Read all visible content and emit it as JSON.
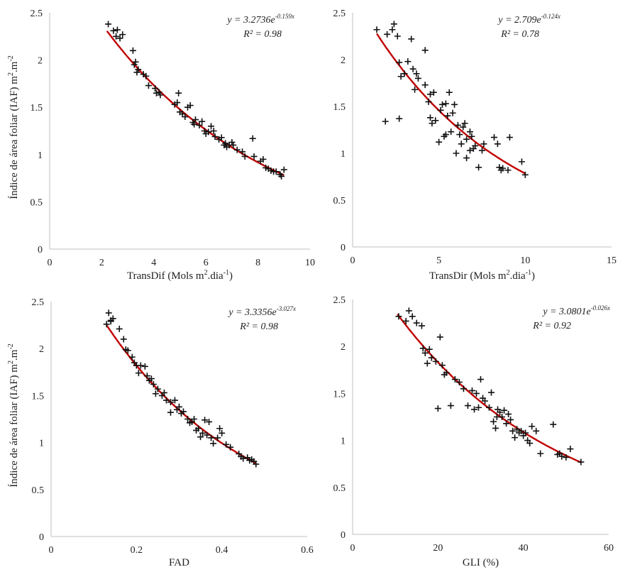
{
  "chart_data": [
    {
      "type": "scatter",
      "id": "transdif",
      "xlabel": "TransDif (Mols m2.dia-1)",
      "xlabel_parts": {
        "main": "TransDif (Mols m",
        "s1": "2",
        "mid": ".dia",
        "s2": "-1",
        "end": ")"
      },
      "ylabel_parts": {
        "main": "Índice de área foliar (IAF) m",
        "s1": "2",
        "mid": ".m",
        "s2": "-2",
        "end": ""
      },
      "xlim": [
        0,
        10
      ],
      "ylim": [
        0,
        2.5
      ],
      "xticks": [
        0,
        2,
        4,
        6,
        8,
        10
      ],
      "yticks": [
        0,
        0.5,
        1,
        1.5,
        2,
        2.5
      ],
      "fit": {
        "a": 3.2736,
        "b": -0.159,
        "x_range": [
          2.2,
          9.0
        ]
      },
      "equation": {
        "base": "y = 3.2736e",
        "exp": "-0.159x"
      },
      "r2": "R² = 0.98",
      "points": [
        [
          2.25,
          2.38
        ],
        [
          2.45,
          2.31
        ],
        [
          2.6,
          2.32
        ],
        [
          2.55,
          2.25
        ],
        [
          2.7,
          2.23
        ],
        [
          2.8,
          2.27
        ],
        [
          3.2,
          2.1
        ],
        [
          3.25,
          1.95
        ],
        [
          3.3,
          1.98
        ],
        [
          3.4,
          1.9
        ],
        [
          3.35,
          1.87
        ],
        [
          3.6,
          1.85
        ],
        [
          3.7,
          1.83
        ],
        [
          3.8,
          1.73
        ],
        [
          4.05,
          1.7
        ],
        [
          4.1,
          1.65
        ],
        [
          4.2,
          1.66
        ],
        [
          4.25,
          1.63
        ],
        [
          4.8,
          1.53
        ],
        [
          4.9,
          1.55
        ],
        [
          4.95,
          1.65
        ],
        [
          5.0,
          1.45
        ],
        [
          5.1,
          1.43
        ],
        [
          5.2,
          1.4
        ],
        [
          5.3,
          1.5
        ],
        [
          5.4,
          1.52
        ],
        [
          5.5,
          1.34
        ],
        [
          5.55,
          1.32
        ],
        [
          5.6,
          1.37
        ],
        [
          5.75,
          1.31
        ],
        [
          5.85,
          1.35
        ],
        [
          5.95,
          1.25
        ],
        [
          6.0,
          1.22
        ],
        [
          6.1,
          1.24
        ],
        [
          6.2,
          1.3
        ],
        [
          6.3,
          1.25
        ],
        [
          6.35,
          1.19
        ],
        [
          6.5,
          1.16
        ],
        [
          6.6,
          1.18
        ],
        [
          6.7,
          1.1
        ],
        [
          6.75,
          1.12
        ],
        [
          6.8,
          1.08
        ],
        [
          6.9,
          1.1
        ],
        [
          7.0,
          1.13
        ],
        [
          7.05,
          1.1
        ],
        [
          7.2,
          1.05
        ],
        [
          7.4,
          1.03
        ],
        [
          7.5,
          0.98
        ],
        [
          7.8,
          1.17
        ],
        [
          7.85,
          0.98
        ],
        [
          8.1,
          0.93
        ],
        [
          8.2,
          0.95
        ],
        [
          8.3,
          0.86
        ],
        [
          8.4,
          0.85
        ],
        [
          8.5,
          0.83
        ],
        [
          8.6,
          0.82
        ],
        [
          8.7,
          0.82
        ],
        [
          8.85,
          0.79
        ],
        [
          8.9,
          0.77
        ],
        [
          9.0,
          0.84
        ]
      ]
    },
    {
      "type": "scatter",
      "id": "transdir",
      "xlabel": "TransDir (Mols m2.dia-1)",
      "xlabel_parts": {
        "main": "TransDir (Mols m",
        "s1": "2",
        "mid": ".dia",
        "s2": "-1",
        "end": ")"
      },
      "xlim": [
        0,
        15
      ],
      "ylim": [
        0,
        2.5
      ],
      "xticks": [
        0,
        5,
        10,
        15
      ],
      "yticks": [
        0,
        0.5,
        1,
        1.5,
        2,
        2.5
      ],
      "fit": {
        "a": 2.709,
        "b": -0.124,
        "x_range": [
          1.4,
          10.0
        ]
      },
      "equation": {
        "base": "y = 2.709e",
        "exp": "-0.124x"
      },
      "r2": "R² = 0.78",
      "points": [
        [
          1.4,
          2.32
        ],
        [
          1.9,
          1.34
        ],
        [
          2.0,
          2.27
        ],
        [
          2.3,
          2.32
        ],
        [
          2.4,
          2.38
        ],
        [
          2.6,
          2.25
        ],
        [
          2.7,
          1.37
        ],
        [
          2.7,
          1.97
        ],
        [
          2.8,
          1.82
        ],
        [
          3.0,
          1.85
        ],
        [
          3.2,
          1.98
        ],
        [
          3.4,
          2.22
        ],
        [
          3.5,
          1.9
        ],
        [
          3.6,
          1.68
        ],
        [
          3.7,
          1.85
        ],
        [
          3.8,
          1.8
        ],
        [
          4.2,
          2.1
        ],
        [
          4.2,
          1.73
        ],
        [
          4.4,
          1.55
        ],
        [
          4.5,
          1.63
        ],
        [
          4.5,
          1.38
        ],
        [
          4.6,
          1.32
        ],
        [
          4.7,
          1.65
        ],
        [
          4.8,
          1.35
        ],
        [
          5.0,
          1.12
        ],
        [
          5.1,
          1.46
        ],
        [
          5.2,
          1.52
        ],
        [
          5.3,
          1.18
        ],
        [
          5.4,
          1.53
        ],
        [
          5.4,
          1.2
        ],
        [
          5.5,
          1.4
        ],
        [
          5.6,
          1.65
        ],
        [
          5.7,
          1.23
        ],
        [
          5.8,
          1.43
        ],
        [
          5.9,
          1.52
        ],
        [
          6.0,
          1.0
        ],
        [
          6.1,
          1.3
        ],
        [
          6.2,
          1.2
        ],
        [
          6.3,
          1.1
        ],
        [
          6.4,
          1.28
        ],
        [
          6.5,
          1.32
        ],
        [
          6.6,
          1.15
        ],
        [
          6.6,
          0.95
        ],
        [
          6.8,
          1.23
        ],
        [
          6.8,
          1.03
        ],
        [
          6.9,
          1.18
        ],
        [
          7.0,
          1.05
        ],
        [
          7.1,
          1.08
        ],
        [
          7.3,
          0.85
        ],
        [
          7.5,
          1.03
        ],
        [
          7.6,
          1.1
        ],
        [
          8.2,
          1.17
        ],
        [
          8.4,
          1.1
        ],
        [
          8.5,
          0.85
        ],
        [
          8.6,
          0.82
        ],
        [
          8.7,
          0.84
        ],
        [
          9.0,
          0.82
        ],
        [
          9.1,
          1.17
        ],
        [
          9.8,
          0.91
        ],
        [
          10.0,
          0.77
        ]
      ]
    },
    {
      "type": "scatter",
      "id": "fad",
      "xlabel": "FAD",
      "xlim": [
        0,
        0.6
      ],
      "ylim": [
        0,
        2.5
      ],
      "xticks": [
        0,
        0.2,
        0.4,
        0.6
      ],
      "yticks": [
        0,
        0.5,
        1,
        1.5,
        2,
        2.5
      ],
      "fit": {
        "a": 3.3356,
        "b": -3.027,
        "x_range": [
          0.13,
          0.48
        ]
      },
      "equation": {
        "base": "y = 3.3356e",
        "exp": "-3.027x"
      },
      "r2": "R² = 0.98",
      "points": [
        [
          0.13,
          2.26
        ],
        [
          0.135,
          2.38
        ],
        [
          0.14,
          2.3
        ],
        [
          0.14,
          2.29
        ],
        [
          0.145,
          2.32
        ],
        [
          0.16,
          2.21
        ],
        [
          0.17,
          2.1
        ],
        [
          0.175,
          1.99
        ],
        [
          0.18,
          1.98
        ],
        [
          0.19,
          1.91
        ],
        [
          0.195,
          1.85
        ],
        [
          0.2,
          1.82
        ],
        [
          0.205,
          1.74
        ],
        [
          0.21,
          1.82
        ],
        [
          0.22,
          1.81
        ],
        [
          0.225,
          1.71
        ],
        [
          0.23,
          1.66
        ],
        [
          0.235,
          1.68
        ],
        [
          0.24,
          1.62
        ],
        [
          0.245,
          1.52
        ],
        [
          0.25,
          1.57
        ],
        [
          0.26,
          1.5
        ],
        [
          0.265,
          1.53
        ],
        [
          0.27,
          1.45
        ],
        [
          0.28,
          1.43
        ],
        [
          0.28,
          1.32
        ],
        [
          0.29,
          1.45
        ],
        [
          0.295,
          1.35
        ],
        [
          0.3,
          1.38
        ],
        [
          0.305,
          1.31
        ],
        [
          0.31,
          1.33
        ],
        [
          0.32,
          1.25
        ],
        [
          0.325,
          1.21
        ],
        [
          0.33,
          1.22
        ],
        [
          0.335,
          1.25
        ],
        [
          0.34,
          1.13
        ],
        [
          0.345,
          1.15
        ],
        [
          0.35,
          1.06
        ],
        [
          0.355,
          1.1
        ],
        [
          0.36,
          1.24
        ],
        [
          0.365,
          1.08
        ],
        [
          0.37,
          1.22
        ],
        [
          0.375,
          1.05
        ],
        [
          0.38,
          0.99
        ],
        [
          0.39,
          1.05
        ],
        [
          0.395,
          1.15
        ],
        [
          0.4,
          1.1
        ],
        [
          0.41,
          0.98
        ],
        [
          0.42,
          0.95
        ],
        [
          0.44,
          0.88
        ],
        [
          0.445,
          0.85
        ],
        [
          0.45,
          0.83
        ],
        [
          0.46,
          0.84
        ],
        [
          0.465,
          0.81
        ],
        [
          0.47,
          0.82
        ],
        [
          0.475,
          0.8
        ],
        [
          0.48,
          0.77
        ]
      ]
    },
    {
      "type": "scatter",
      "id": "gli",
      "xlabel": "GLI (%)",
      "xlim": [
        0,
        60
      ],
      "ylim": [
        0,
        2.5
      ],
      "xticks": [
        0,
        20,
        40,
        60
      ],
      "yticks": [
        0,
        0.5,
        1,
        1.5,
        2,
        2.5
      ],
      "fit": {
        "a": 3.0801,
        "b": -0.026,
        "x_range": [
          10.5,
          53.5
        ]
      },
      "equation": {
        "base": "y = 3.0801e",
        "exp": "-0.026x"
      },
      "r2": "R² = 0.92",
      "points": [
        [
          10.8,
          2.32
        ],
        [
          12.5,
          2.27
        ],
        [
          13.2,
          2.38
        ],
        [
          14.0,
          2.32
        ],
        [
          15.0,
          2.25
        ],
        [
          16.2,
          2.22
        ],
        [
          16.5,
          1.98
        ],
        [
          17.0,
          1.93
        ],
        [
          17.5,
          1.82
        ],
        [
          18.0,
          1.97
        ],
        [
          18.5,
          1.88
        ],
        [
          19.5,
          1.84
        ],
        [
          20.0,
          1.34
        ],
        [
          20.5,
          2.1
        ],
        [
          21.0,
          1.8
        ],
        [
          21.5,
          1.7
        ],
        [
          22.0,
          1.72
        ],
        [
          23.0,
          1.37
        ],
        [
          24.0,
          1.65
        ],
        [
          25.0,
          1.62
        ],
        [
          26.0,
          1.55
        ],
        [
          27.0,
          1.37
        ],
        [
          28.0,
          1.53
        ],
        [
          28.5,
          1.33
        ],
        [
          29.0,
          1.5
        ],
        [
          29.5,
          1.35
        ],
        [
          30.0,
          1.65
        ],
        [
          30.5,
          1.45
        ],
        [
          31.0,
          1.42
        ],
        [
          32.0,
          1.35
        ],
        [
          32.5,
          1.51
        ],
        [
          33.0,
          1.2
        ],
        [
          33.5,
          1.13
        ],
        [
          33.8,
          1.25
        ],
        [
          34.0,
          1.33
        ],
        [
          34.5,
          1.3
        ],
        [
          35.0,
          1.25
        ],
        [
          35.5,
          1.32
        ],
        [
          36.0,
          1.18
        ],
        [
          36.5,
          1.28
        ],
        [
          37.0,
          1.22
        ],
        [
          37.5,
          1.1
        ],
        [
          38.0,
          1.03
        ],
        [
          38.5,
          1.12
        ],
        [
          39.0,
          1.08
        ],
        [
          39.5,
          1.1
        ],
        [
          40.0,
          1.05
        ],
        [
          40.5,
          1.08
        ],
        [
          41.0,
          1.0
        ],
        [
          41.5,
          0.97
        ],
        [
          42.0,
          1.15
        ],
        [
          43.0,
          1.1
        ],
        [
          44.0,
          0.86
        ],
        [
          47.0,
          1.17
        ],
        [
          48.0,
          0.85
        ],
        [
          48.5,
          0.86
        ],
        [
          49.0,
          0.83
        ],
        [
          50.0,
          0.82
        ],
        [
          51.0,
          0.91
        ],
        [
          53.5,
          0.77
        ]
      ]
    }
  ]
}
